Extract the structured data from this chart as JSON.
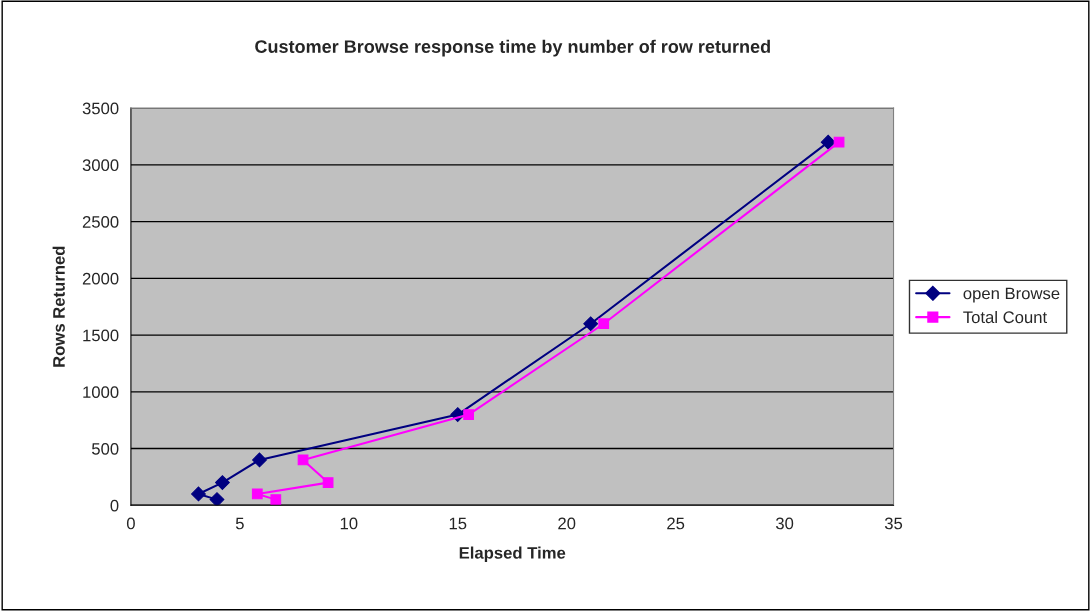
{
  "chart_data": {
    "type": "line",
    "title": "Customer Browse response time by number of row returned",
    "xlabel": "Elapsed Time",
    "ylabel": "Rows Returned",
    "xlim": [
      0,
      35
    ],
    "xticks": [
      0,
      5,
      10,
      15,
      20,
      25,
      30,
      35
    ],
    "ylim": [
      0,
      3500
    ],
    "yticks": [
      0,
      500,
      1000,
      1500,
      2000,
      2500,
      3000,
      3500
    ],
    "grid": "y",
    "legend": "right",
    "series": [
      {
        "name": "open Browse",
        "color": "#000080",
        "marker": "diamond",
        "x": [
          3.95,
          3.1,
          4.2,
          5.9,
          15.0,
          21.1,
          32.0
        ],
        "values": [
          50,
          100,
          200,
          400,
          800,
          1600,
          3200
        ]
      },
      {
        "name": "Total Count",
        "color": "#ff00ff",
        "marker": "square",
        "x": [
          6.65,
          5.8,
          9.05,
          7.9,
          15.5,
          21.7,
          32.5
        ],
        "values": [
          50,
          100,
          200,
          400,
          800,
          1600,
          3200
        ]
      }
    ]
  }
}
